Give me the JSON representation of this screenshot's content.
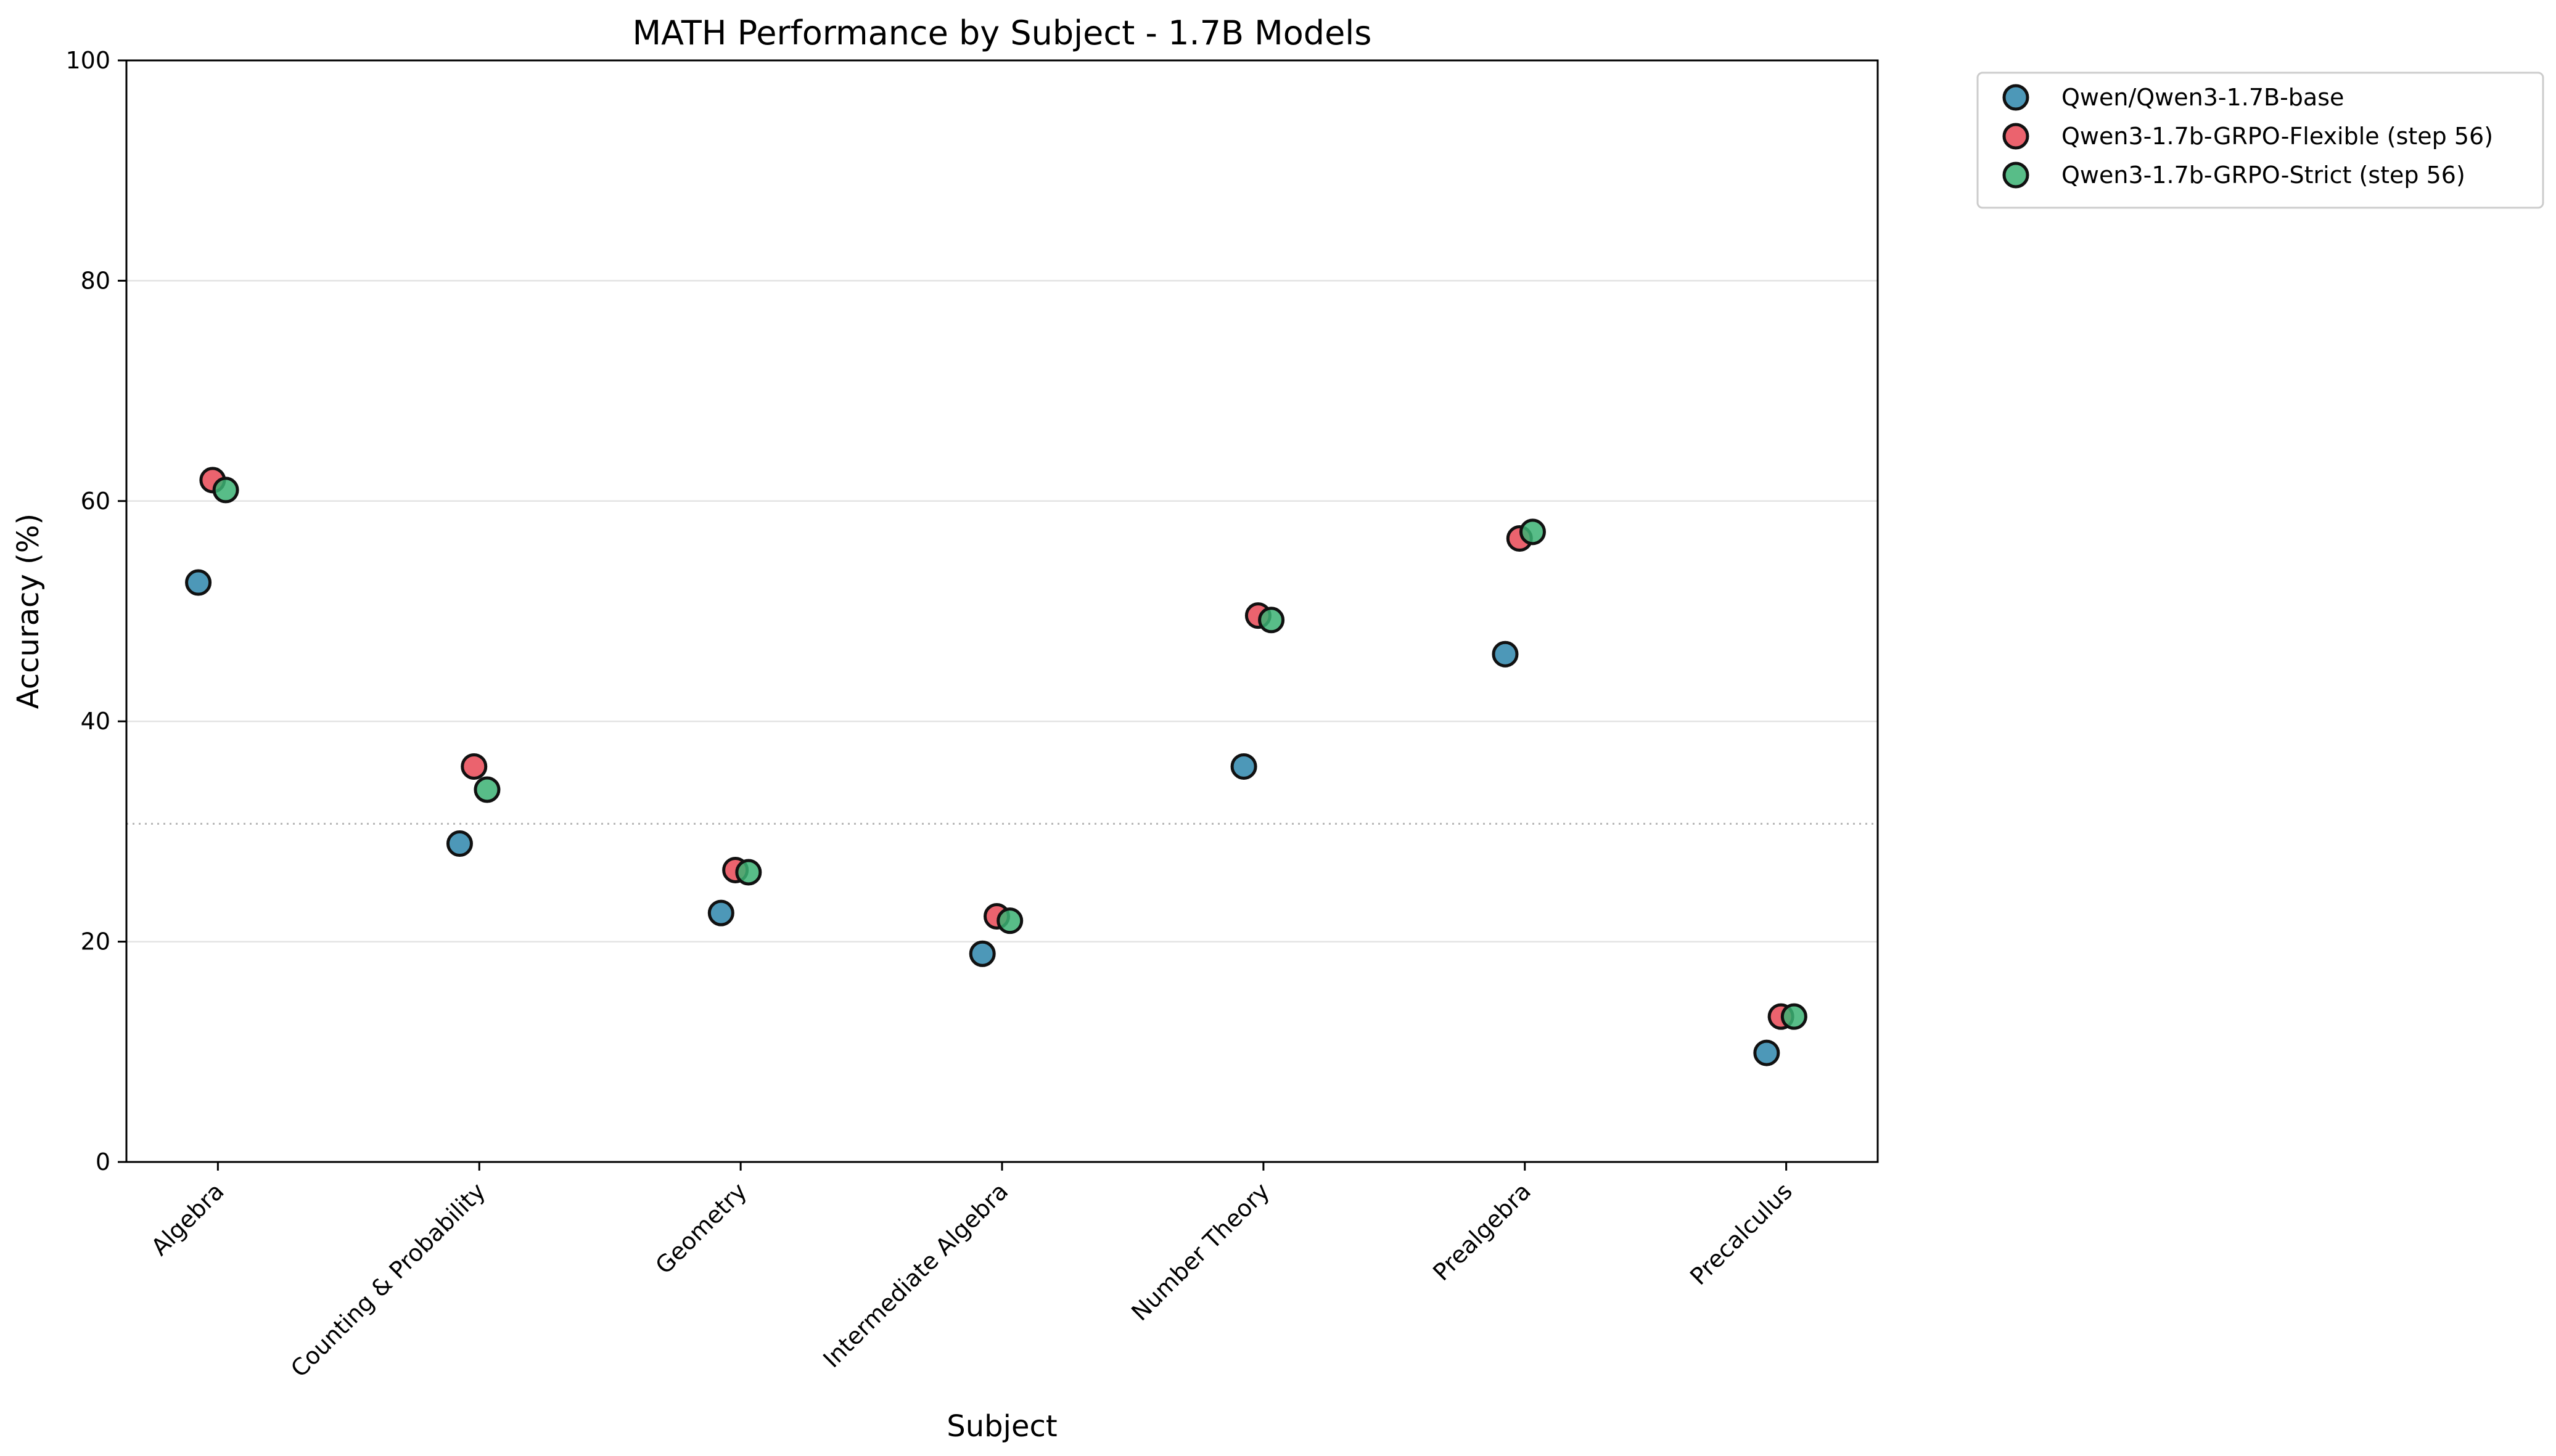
{
  "chart_data": {
    "type": "scatter",
    "title": "MATH Performance by Subject - 1.7B Models",
    "xlabel": "Subject",
    "ylabel": "Accuracy (%)",
    "ylim": [
      0,
      100
    ],
    "yticks": [
      0,
      20,
      40,
      60,
      80,
      100
    ],
    "grid": "horizontal",
    "legend_position": "outside-top-right",
    "reference_line": 30.7,
    "categories": [
      "Algebra",
      "Counting & Probability",
      "Geometry",
      "Intermediate Algebra",
      "Number Theory",
      "Prealgebra",
      "Precalculus"
    ],
    "series": [
      {
        "name": "Qwen/Qwen3-1.7B-base",
        "color": "#2E86AB",
        "values": [
          52.6,
          28.9,
          22.6,
          18.9,
          35.9,
          46.1,
          9.9
        ]
      },
      {
        "name": "Qwen3-1.7b-GRPO-Flexible (step 56)",
        "color": "#E84855",
        "values": [
          61.9,
          35.9,
          26.5,
          22.3,
          49.6,
          56.6,
          13.2
        ]
      },
      {
        "name": "Qwen3-1.7b-GRPO-Strict (step 56)",
        "color": "#3BB273",
        "values": [
          61.0,
          33.8,
          26.3,
          21.9,
          49.2,
          57.2,
          13.2
        ]
      }
    ]
  }
}
